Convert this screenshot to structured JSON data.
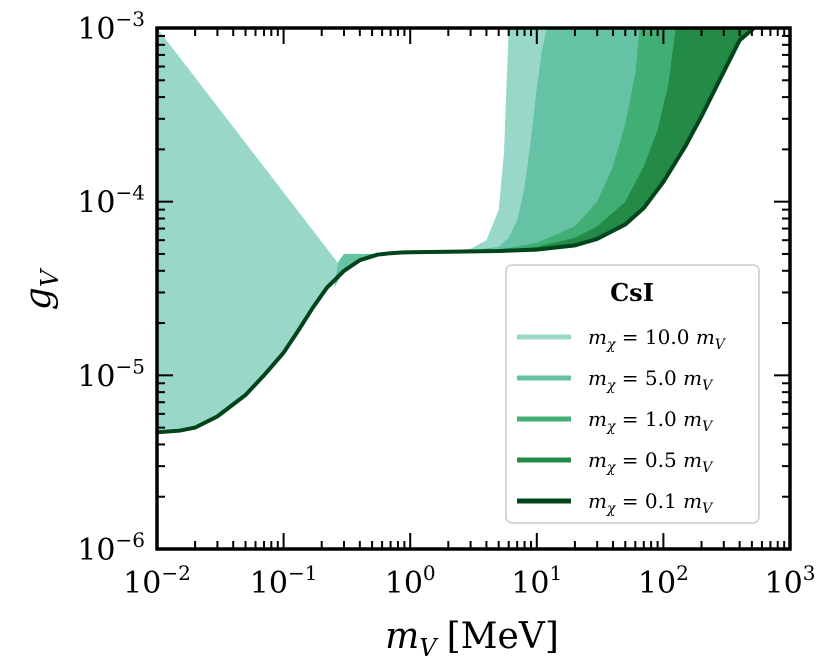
{
  "chart_data": {
    "type": "area",
    "title": "",
    "xlabel": "m_V [MeV]",
    "ylabel": "g_V",
    "x_scale": "log",
    "y_scale": "log",
    "xlim": [
      0.01,
      1000
    ],
    "ylim": [
      1e-06,
      0.001
    ],
    "x_ticks": [
      0.01,
      0.1,
      1,
      10,
      100,
      1000
    ],
    "y_ticks": [
      1e-06,
      1e-05,
      0.0001,
      0.001
    ],
    "x_tick_labels": [
      {
        "base": "10",
        "exp": "−2"
      },
      {
        "base": "10",
        "exp": "−1"
      },
      {
        "base": "10",
        "exp": "0"
      },
      {
        "base": "10",
        "exp": "1"
      },
      {
        "base": "10",
        "exp": "2"
      },
      {
        "base": "10",
        "exp": "3"
      }
    ],
    "y_tick_labels": [
      {
        "base": "10",
        "exp": "−6"
      },
      {
        "base": "10",
        "exp": "−5"
      },
      {
        "base": "10",
        "exp": "−4"
      },
      {
        "base": "10",
        "exp": "−3"
      }
    ],
    "axis_labels": {
      "x": {
        "main": "m",
        "sub": "V",
        "unit": "[MeV]"
      },
      "y": {
        "main": "g",
        "sub": "V"
      }
    },
    "legend": {
      "title": "CsI",
      "placement": "lower-right",
      "entries": [
        {
          "lhs": "m",
          "lhs_sub": "χ",
          "eq": " = 10.0 ",
          "rhs": "m",
          "rhs_sub": "V"
        },
        {
          "lhs": "m",
          "lhs_sub": "χ",
          "eq": " = 5.0 ",
          "rhs": "m",
          "rhs_sub": "V"
        },
        {
          "lhs": "m",
          "lhs_sub": "χ",
          "eq": " = 1.0 ",
          "rhs": "m",
          "rhs_sub": "V"
        },
        {
          "lhs": "m",
          "lhs_sub": "χ",
          "eq": " = 0.5 ",
          "rhs": "m",
          "rhs_sub": "V"
        },
        {
          "lhs": "m",
          "lhs_sub": "χ",
          "eq": " = 0.1 ",
          "rhs": "m",
          "rhs_sub": "V"
        }
      ]
    },
    "lower_boundary": {
      "x": [
        0.01,
        0.015,
        0.02,
        0.03,
        0.05,
        0.07,
        0.1,
        0.13,
        0.17,
        0.22,
        0.3,
        0.4,
        0.55,
        0.7,
        0.85,
        1.0,
        2.0,
        5.0,
        10,
        20,
        30,
        50,
        70,
        100,
        150,
        200,
        300,
        400,
        520
      ],
      "y": [
        4.7e-06,
        4.8e-06,
        5e-06,
        5.8e-06,
        7.7e-06,
        1e-05,
        1.35e-05,
        1.8e-05,
        2.45e-05,
        3.2e-05,
        4e-05,
        4.6e-05,
        4.95e-05,
        5.05e-05,
        5.1e-05,
        5.12e-05,
        5.15e-05,
        5.2e-05,
        5.3e-05,
        5.6e-05,
        6.1e-05,
        7.4e-05,
        9.2e-05,
        0.00013,
        0.00021,
        0.00031,
        0.00056,
        0.00085,
        0.001
      ]
    },
    "series": [
      {
        "name": "m_χ = 10.0 m_V",
        "color": "#99d8c9",
        "upper_left": {
          "x": [
            0.01,
            0.3,
            0.4,
            0.55,
            0.7,
            0.85,
            1.0,
            2.0,
            3.0,
            4.0,
            5.0,
            5.5,
            6.0
          ],
          "y": [
            0.001,
            4e-05,
            4.6e-05,
            4.95e-05,
            5.05e-05,
            5.1e-05,
            5.12e-05,
            5.18e-05,
            5.35e-05,
            6e-05,
            9e-05,
            0.00019,
            0.001
          ]
        }
      },
      {
        "name": "m_χ = 5.0 m_V",
        "color": "#66c2a4",
        "upper_left": {
          "x": [
            0.25,
            0.27,
            0.3,
            0.5,
            1.0,
            3.0,
            5.0,
            6.0,
            7.0,
            8.0,
            9.0,
            10.0,
            11.0,
            12.0
          ],
          "y": [
            3.2e-05,
            4.5e-05,
            5e-05,
            5e-05,
            5.1e-05,
            5.25e-05,
            5.5e-05,
            6.2e-05,
            7.8e-05,
            0.00012,
            0.00023,
            0.00045,
            0.00075,
            0.001
          ]
        }
      },
      {
        "name": "m_χ = 1.0 m_V",
        "color": "#41ae76",
        "upper_left": {
          "x": [
            0.4,
            0.5,
            1.0,
            5.0,
            10,
            20,
            30,
            40,
            50,
            60,
            65
          ],
          "y": [
            4.7e-05,
            5e-05,
            5.12e-05,
            5.3e-05,
            5.8e-05,
            7.2e-05,
            0.0001,
            0.00016,
            0.00028,
            0.00055,
            0.001
          ]
        }
      },
      {
        "name": "m_χ = 0.5 m_V",
        "color": "#238b45",
        "upper_left": {
          "x": [
            0.55,
            1.0,
            5.0,
            10,
            20,
            30,
            50,
            70,
            90,
            110,
            125
          ],
          "y": [
            4.95e-05,
            5.12e-05,
            5.25e-05,
            5.5e-05,
            6.2e-05,
            7.2e-05,
            0.0001,
            0.00016,
            0.00026,
            0.00048,
            0.001
          ]
        }
      },
      {
        "name": "m_χ = 0.1 m_V",
        "color": "#00441b",
        "upper_left": {
          "x": [
            0.85,
            1.0,
            5.0,
            10,
            20,
            30,
            50,
            70,
            100,
            150,
            200,
            300,
            400,
            520
          ],
          "y": [
            5.1e-05,
            5.12e-05,
            5.2e-05,
            5.3e-05,
            5.6e-05,
            6.1e-05,
            7.4e-05,
            9.2e-05,
            0.00013,
            0.00021,
            0.00031,
            0.00056,
            0.00085,
            0.001
          ]
        }
      }
    ]
  }
}
